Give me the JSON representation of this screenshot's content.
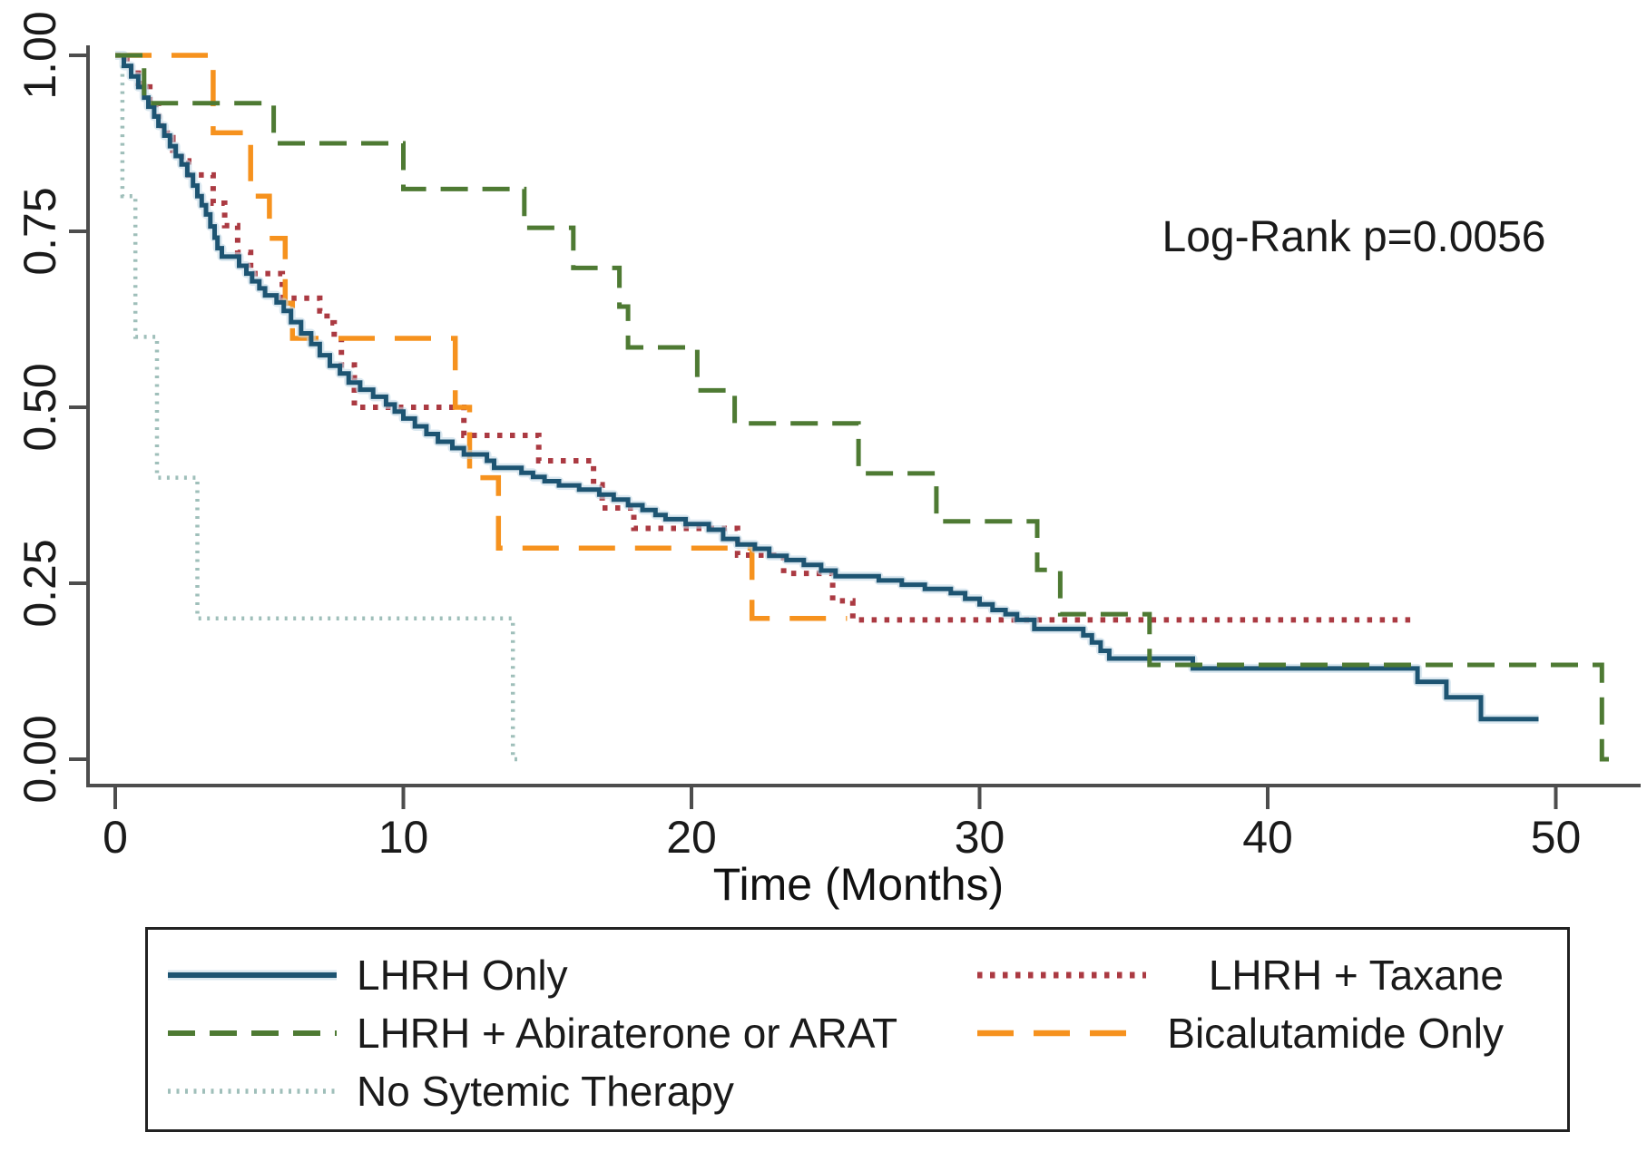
{
  "figure": {
    "annotation": "Log-Rank p=0.0056",
    "background": "#ffffff",
    "axis_color": "#4d4d4d",
    "text_color": "#1a1a1a"
  },
  "chart_data": {
    "type": "line",
    "subtype": "kaplan-meier-step",
    "title": "",
    "xlabel": "Time (Months)",
    "ylabel": "",
    "xlim": [
      0,
      52.5
    ],
    "ylim": [
      0.0,
      1.0
    ],
    "grid": false,
    "legend_position": "bottom-box",
    "x_ticks": [
      0,
      10,
      20,
      30,
      40,
      50
    ],
    "x_tick_labels": [
      "0",
      "10",
      "20",
      "30",
      "40",
      "50"
    ],
    "y_ticks": [
      0.0,
      0.25,
      0.5,
      0.75,
      1.0
    ],
    "y_tick_labels": [
      "0.00",
      "0.25",
      "0.50",
      "0.75",
      "1.00"
    ],
    "annotations": [
      {
        "text": "Log-Rank p=0.0056",
        "x": 42,
        "y": 0.74
      }
    ],
    "series": [
      {
        "name": "LHRH Only",
        "color": "#1d5472",
        "halo_color": "#c3d8e6",
        "style": "solid",
        "steps": [
          [
            0,
            1.0
          ],
          [
            0.3,
            0.985
          ],
          [
            0.55,
            0.97
          ],
          [
            0.8,
            0.955
          ],
          [
            1.0,
            0.94
          ],
          [
            1.15,
            0.927
          ],
          [
            1.35,
            0.913
          ],
          [
            1.5,
            0.9
          ],
          [
            1.7,
            0.886
          ],
          [
            1.9,
            0.871
          ],
          [
            2.1,
            0.857
          ],
          [
            2.3,
            0.845
          ],
          [
            2.5,
            0.83
          ],
          [
            2.7,
            0.815
          ],
          [
            2.85,
            0.8
          ],
          [
            3.0,
            0.787
          ],
          [
            3.15,
            0.774
          ],
          [
            3.3,
            0.757
          ],
          [
            3.45,
            0.741
          ],
          [
            3.55,
            0.726
          ],
          [
            3.7,
            0.714
          ],
          [
            4.3,
            0.701
          ],
          [
            4.55,
            0.69
          ],
          [
            4.75,
            0.679
          ],
          [
            5.0,
            0.669
          ],
          [
            5.2,
            0.659
          ],
          [
            5.6,
            0.649
          ],
          [
            5.85,
            0.637
          ],
          [
            6.1,
            0.621
          ],
          [
            6.45,
            0.605
          ],
          [
            6.8,
            0.59
          ],
          [
            7.1,
            0.574
          ],
          [
            7.45,
            0.559
          ],
          [
            7.8,
            0.548
          ],
          [
            8.1,
            0.535
          ],
          [
            8.5,
            0.525
          ],
          [
            8.95,
            0.515
          ],
          [
            9.4,
            0.504
          ],
          [
            9.7,
            0.494
          ],
          [
            10.0,
            0.484
          ],
          [
            10.4,
            0.473
          ],
          [
            10.8,
            0.462
          ],
          [
            11.2,
            0.451
          ],
          [
            11.7,
            0.442
          ],
          [
            12.1,
            0.433
          ],
          [
            12.9,
            0.424
          ],
          [
            13.15,
            0.414
          ],
          [
            14.1,
            0.407
          ],
          [
            14.5,
            0.401
          ],
          [
            14.9,
            0.395
          ],
          [
            15.4,
            0.389
          ],
          [
            16.1,
            0.383
          ],
          [
            16.8,
            0.376
          ],
          [
            17.3,
            0.369
          ],
          [
            17.8,
            0.361
          ],
          [
            18.3,
            0.354
          ],
          [
            18.75,
            0.347
          ],
          [
            19.1,
            0.341
          ],
          [
            19.8,
            0.334
          ],
          [
            20.6,
            0.326
          ],
          [
            21.1,
            0.313
          ],
          [
            21.6,
            0.305
          ],
          [
            22.2,
            0.299
          ],
          [
            22.7,
            0.289
          ],
          [
            23.3,
            0.283
          ],
          [
            23.9,
            0.276
          ],
          [
            24.5,
            0.268
          ],
          [
            25.0,
            0.26
          ],
          [
            26.5,
            0.254
          ],
          [
            27.3,
            0.248
          ],
          [
            28.1,
            0.242
          ],
          [
            29.0,
            0.236
          ],
          [
            29.5,
            0.228
          ],
          [
            30.0,
            0.22
          ],
          [
            30.45,
            0.212
          ],
          [
            30.9,
            0.206
          ],
          [
            31.3,
            0.198
          ],
          [
            31.9,
            0.185
          ],
          [
            33.6,
            0.176
          ],
          [
            33.9,
            0.166
          ],
          [
            34.2,
            0.154
          ],
          [
            34.5,
            0.143
          ],
          [
            37.4,
            0.129
          ],
          [
            45.2,
            0.11
          ],
          [
            46.2,
            0.088
          ],
          [
            47.4,
            0.057
          ],
          [
            49.4,
            0.057
          ]
        ]
      },
      {
        "name": "LHRH + Taxane",
        "color": "#ab3a42",
        "style": "dotted",
        "steps": [
          [
            0,
            1.0
          ],
          [
            0.4,
            0.983
          ],
          [
            0.8,
            0.96
          ],
          [
            1.2,
            0.93
          ],
          [
            1.5,
            0.9
          ],
          [
            1.8,
            0.883
          ],
          [
            2.0,
            0.865
          ],
          [
            2.3,
            0.85
          ],
          [
            2.55,
            0.83
          ],
          [
            3.4,
            0.79
          ],
          [
            3.8,
            0.758
          ],
          [
            4.25,
            0.72
          ],
          [
            4.7,
            0.69
          ],
          [
            5.8,
            0.655
          ],
          [
            7.1,
            0.637
          ],
          [
            7.35,
            0.62
          ],
          [
            7.6,
            0.6
          ],
          [
            7.85,
            0.56
          ],
          [
            8.3,
            0.5
          ],
          [
            12.1,
            0.46
          ],
          [
            14.7,
            0.424
          ],
          [
            16.6,
            0.39
          ],
          [
            16.9,
            0.357
          ],
          [
            18.0,
            0.328
          ],
          [
            21.6,
            0.29
          ],
          [
            23.2,
            0.264
          ],
          [
            24.9,
            0.225
          ],
          [
            25.6,
            0.198
          ],
          [
            45.0,
            0.198
          ]
        ]
      },
      {
        "name": "LHRH + Abiraterone or ARAT",
        "color": "#4e7a33",
        "style": "dashed",
        "steps": [
          [
            0,
            1.0
          ],
          [
            1.0,
            0.932
          ],
          [
            5.5,
            0.875
          ],
          [
            10.0,
            0.81
          ],
          [
            14.2,
            0.755
          ],
          [
            15.9,
            0.698
          ],
          [
            17.5,
            0.643
          ],
          [
            17.8,
            0.585
          ],
          [
            20.2,
            0.524
          ],
          [
            21.5,
            0.477
          ],
          [
            25.8,
            0.406
          ],
          [
            28.5,
            0.338
          ],
          [
            32.0,
            0.269
          ],
          [
            32.8,
            0.206
          ],
          [
            35.9,
            0.134
          ],
          [
            51.6,
            0.0
          ],
          [
            51.9,
            0.0
          ]
        ]
      },
      {
        "name": "Bicalutamide Only",
        "color": "#f6921e",
        "style": "long-dash",
        "steps": [
          [
            0,
            1.0
          ],
          [
            3.4,
            0.89
          ],
          [
            4.7,
            0.8
          ],
          [
            5.35,
            0.74
          ],
          [
            5.9,
            0.648
          ],
          [
            6.15,
            0.598
          ],
          [
            11.8,
            0.5
          ],
          [
            12.3,
            0.4
          ],
          [
            13.3,
            0.3
          ],
          [
            22.1,
            0.2
          ],
          [
            25.4,
            0.2
          ]
        ]
      },
      {
        "name": "No Sytemic Therapy",
        "color": "#9fbfba",
        "style": "fine-dotted",
        "steps": [
          [
            0,
            1.0
          ],
          [
            0.25,
            0.8
          ],
          [
            0.7,
            0.6
          ],
          [
            1.45,
            0.4
          ],
          [
            2.85,
            0.2
          ],
          [
            13.8,
            0.0
          ],
          [
            14.05,
            0.0
          ]
        ]
      }
    ]
  },
  "legend": {
    "items": [
      {
        "label": "LHRH Only",
        "series_index": 0
      },
      {
        "label": "LHRH + Taxane",
        "series_index": 1
      },
      {
        "label": "LHRH + Abiraterone or ARAT",
        "series_index": 2
      },
      {
        "label": "Bicalutamide Only",
        "series_index": 3
      },
      {
        "label": "No Sytemic Therapy",
        "series_index": 4
      }
    ]
  }
}
